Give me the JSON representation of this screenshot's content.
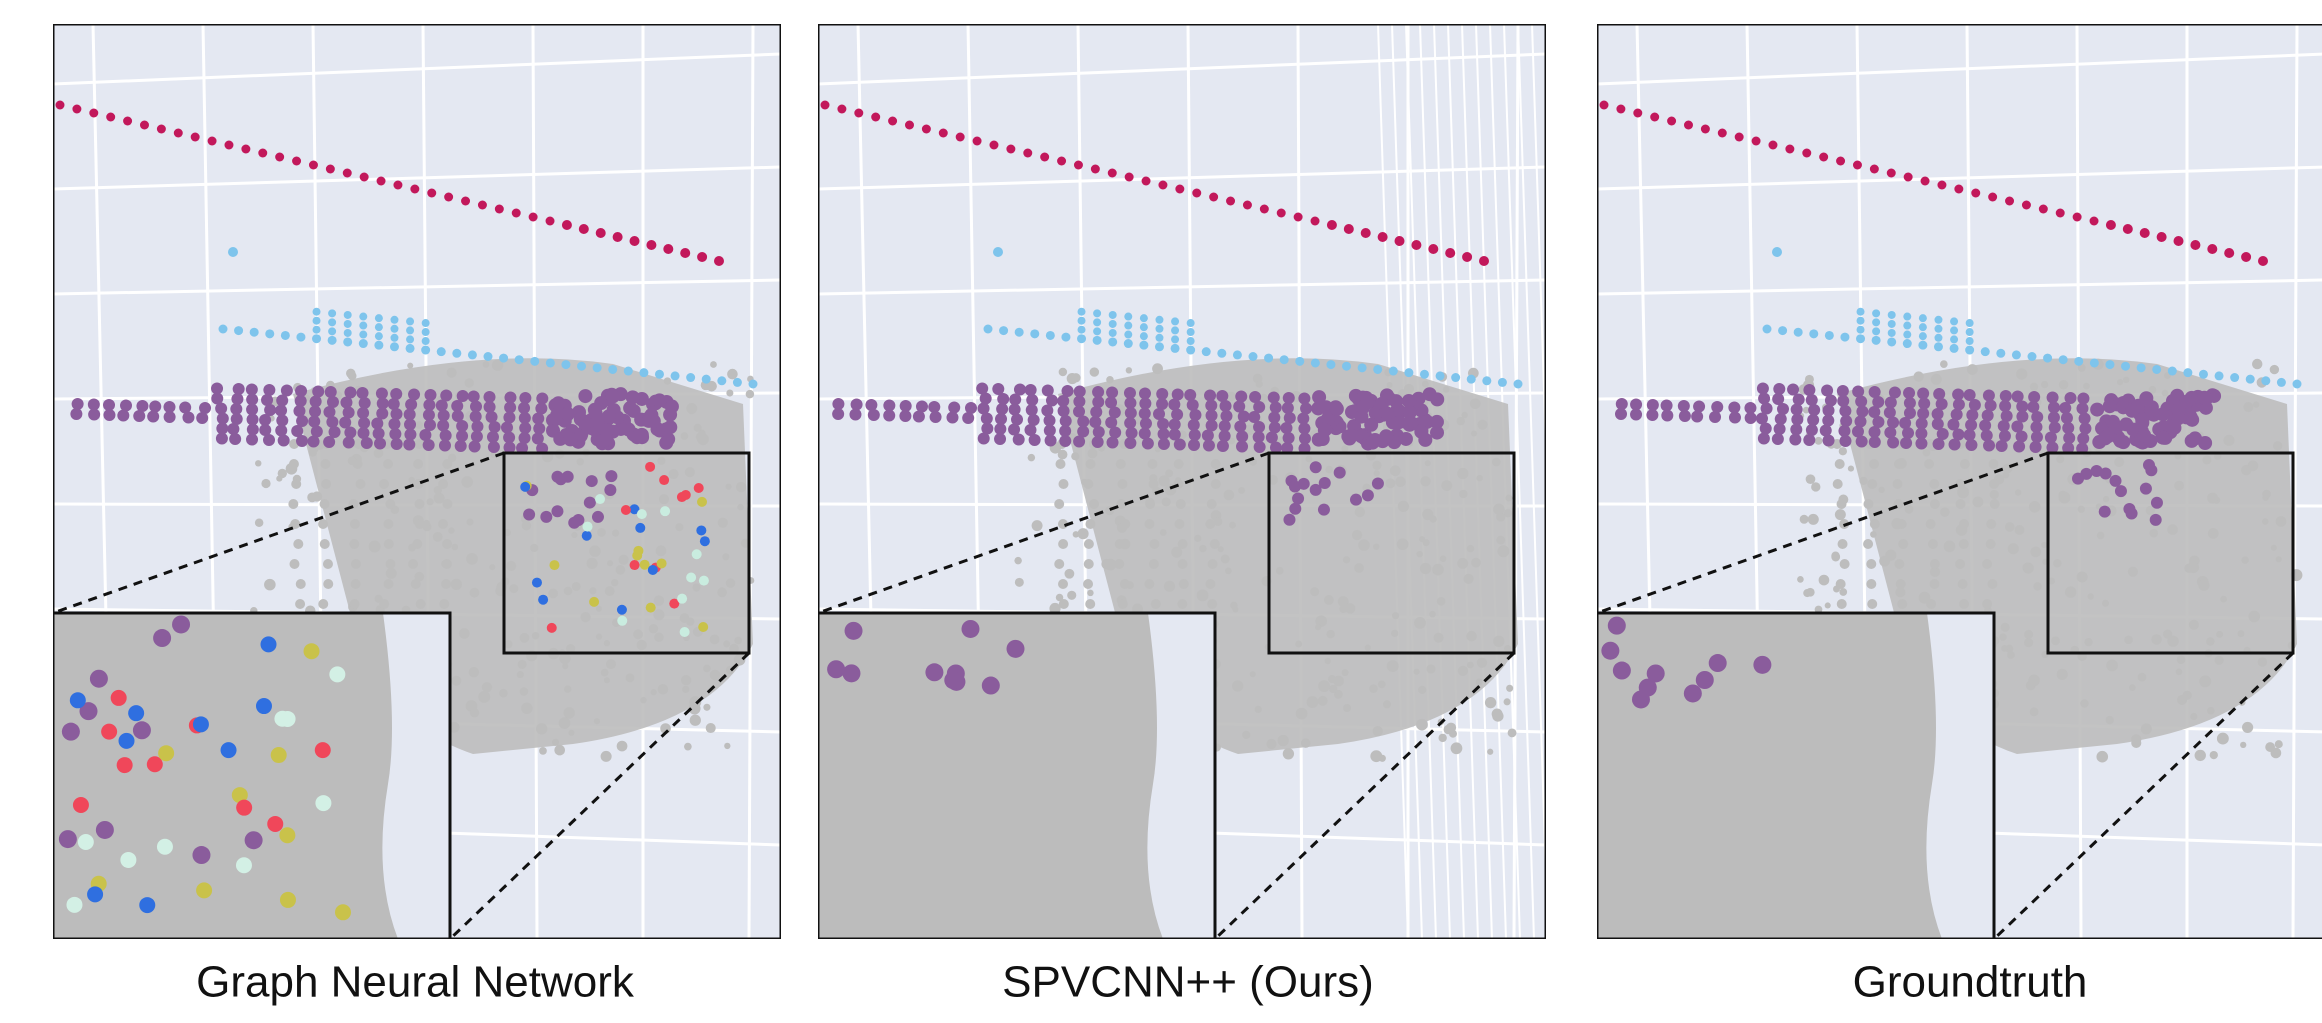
{
  "panels": [
    {
      "caption": "Graph Neural Network"
    },
    {
      "caption": "SPVCNN++ (Ours)"
    },
    {
      "caption": "Groundtruth"
    }
  ]
}
